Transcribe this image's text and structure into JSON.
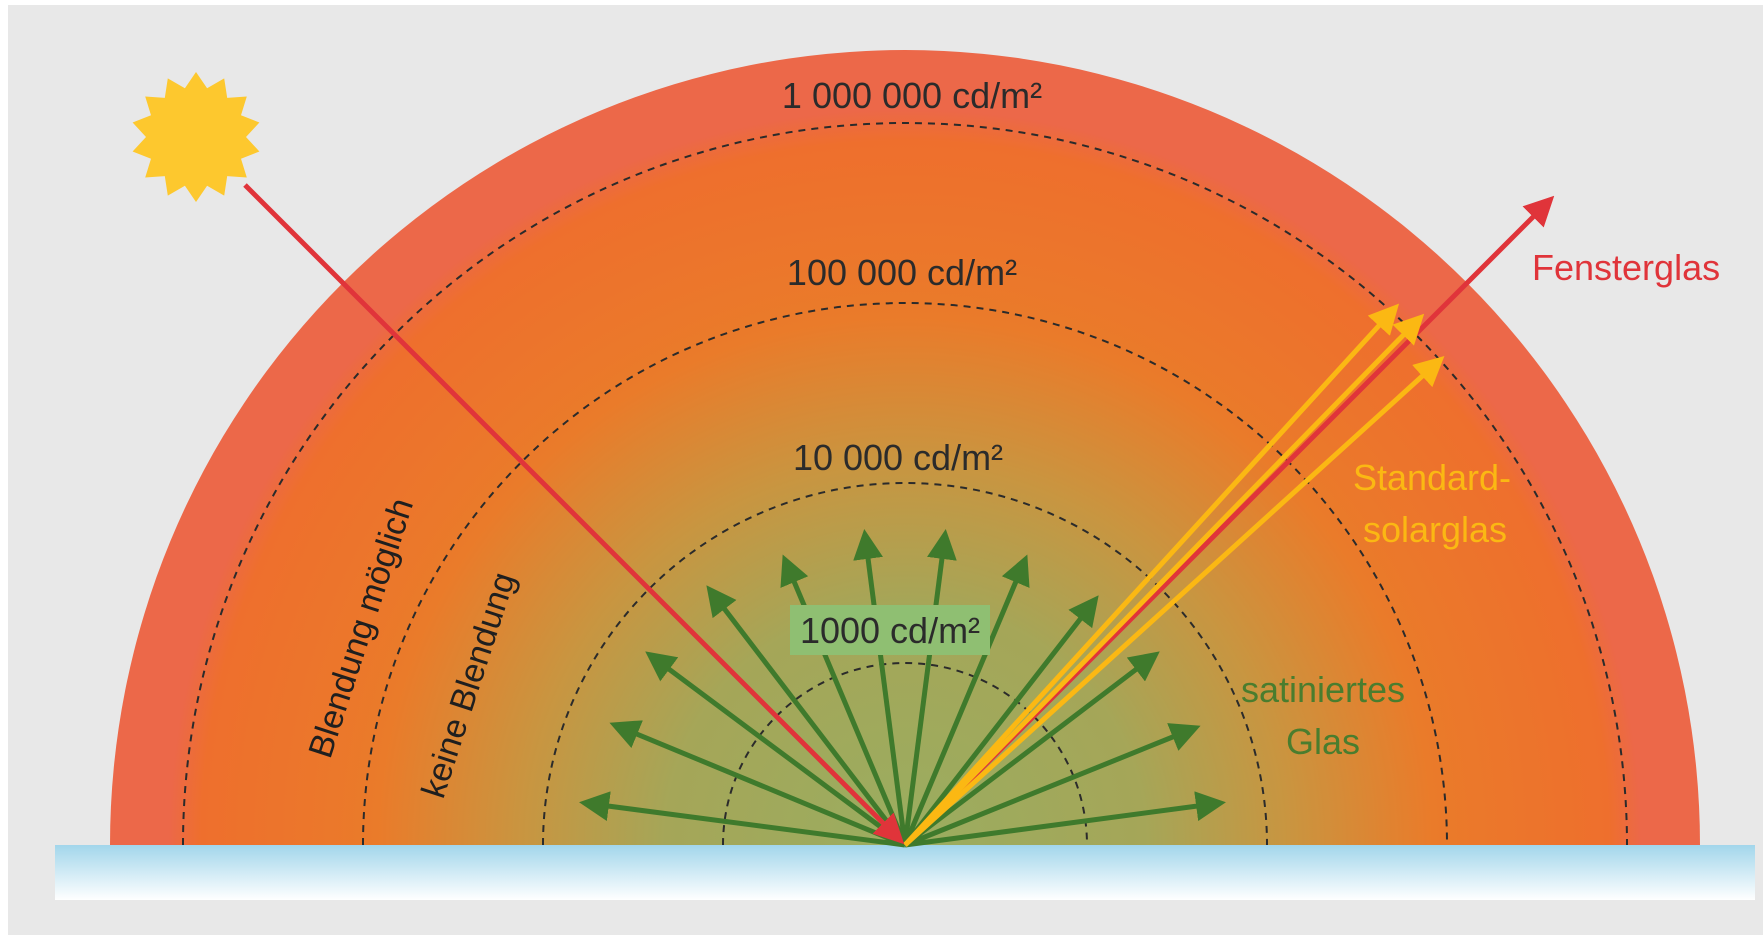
{
  "diagram": {
    "luminance_levels": [
      {
        "label": "1 000 000 cd/m²",
        "highlight": false
      },
      {
        "label": "100 000 cd/m²",
        "highlight": false
      },
      {
        "label": "10 000 cd/m²",
        "highlight": false
      },
      {
        "label": "1000 cd/m²",
        "highlight": true
      }
    ],
    "zones": {
      "glare_possible": "Blendung möglich",
      "no_glare": "keine Blendung"
    },
    "reflections": {
      "window_glass": "Fensterglas",
      "standard_solar_glass_line1": "Standard-",
      "standard_solar_glass_line2": "solarglas",
      "satin_glass_line1": "satiniertes",
      "satin_glass_line2": "Glas"
    },
    "colors": {
      "background": "#e8e8e8",
      "outer_band": "#ec664a",
      "mid_band": "#ee7a26",
      "inner_green": "#9aa95e",
      "sun": "#fdc82e",
      "incident_ray": "#e0343a",
      "specular_reflection": "#e0343a",
      "solar_glass_rays": "#fbb813",
      "diffuse_rays": "#3f7a2c",
      "glass_surface_top": "#9fd4ea",
      "glass_surface_bottom": "#ffffff",
      "label_box": "#8fbf72"
    },
    "icons": [
      "sun-icon"
    ]
  }
}
